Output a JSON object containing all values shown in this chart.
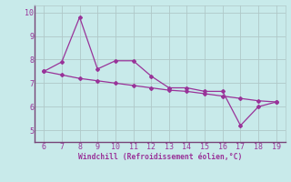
{
  "x": [
    6,
    7,
    8,
    9,
    10,
    11,
    12,
    13,
    14,
    15,
    16,
    17,
    18,
    19
  ],
  "y_main": [
    7.5,
    7.9,
    9.8,
    7.6,
    7.95,
    7.95,
    7.3,
    6.8,
    6.8,
    6.65,
    6.65,
    5.2,
    6.0,
    6.2
  ],
  "y_trend": [
    7.5,
    7.35,
    7.2,
    7.1,
    7.0,
    6.9,
    6.8,
    6.7,
    6.65,
    6.55,
    6.45,
    6.35,
    6.25,
    6.2
  ],
  "line_color": "#993399",
  "bg_color": "#c8eaea",
  "grid_color": "#b0c8c8",
  "xlabel": "Windchill (Refroidissement éolien,°C)",
  "xlim": [
    5.5,
    19.5
  ],
  "ylim": [
    4.5,
    10.3
  ],
  "xticks": [
    6,
    7,
    8,
    9,
    10,
    11,
    12,
    13,
    14,
    15,
    16,
    17,
    18,
    19
  ],
  "yticks": [
    5,
    6,
    7,
    8,
    9,
    10
  ]
}
